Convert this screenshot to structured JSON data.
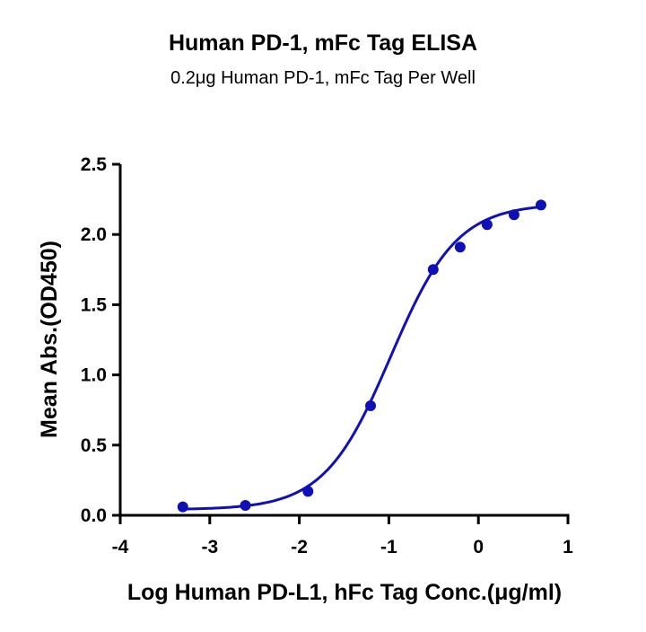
{
  "header": {
    "title": "Human PD-1, mFc Tag ELISA",
    "subtitle": "0.2μg Human PD-1, mFc Tag Per Well"
  },
  "colors": {
    "series": "#1010b8",
    "axis": "#000000"
  },
  "chart_data": {
    "type": "scatter",
    "title": "Human PD-1, mFc Tag ELISA",
    "subtitle": "0.2μg Human PD-1, mFc Tag Per Well",
    "xlabel": "Log Human PD-L1, hFc Tag Conc.(μg/ml)",
    "ylabel": "Mean Abs.(OD450)",
    "xlim": [
      -4,
      1
    ],
    "ylim": [
      0,
      2.5
    ],
    "x_ticks": [
      "-4",
      "-3",
      "-2",
      "-1",
      "0",
      "1"
    ],
    "y_ticks": [
      "0.0",
      "0.5",
      "1.0",
      "1.5",
      "2.0",
      "2.5"
    ],
    "grid": false,
    "legend": null,
    "series": [
      {
        "name": "Human PD-L1, hFc Tag",
        "x": [
          -3.301,
          -2.602,
          -1.903,
          -1.204,
          -0.505,
          -0.204,
          0.097,
          0.398,
          0.699
        ],
        "y": [
          0.06,
          0.07,
          0.17,
          0.78,
          1.75,
          1.91,
          2.07,
          2.14,
          2.21
        ]
      }
    ],
    "fit": {
      "model": "4PL",
      "bottom": 0.04,
      "top": 2.22,
      "log_ec50": -0.98,
      "hill_slope": 1.17
    }
  }
}
